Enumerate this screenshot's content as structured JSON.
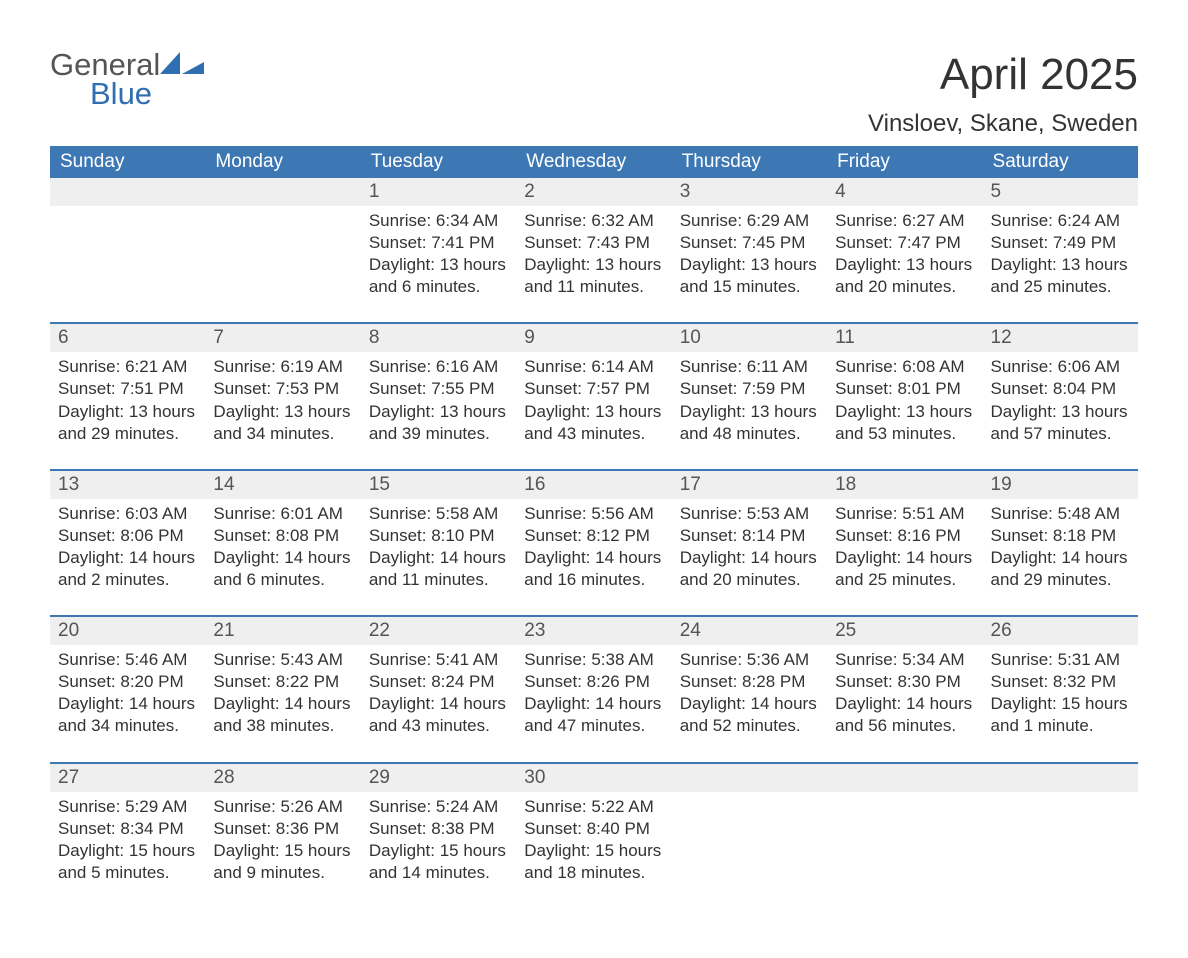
{
  "logo": {
    "word1": "General",
    "word2": "Blue"
  },
  "title": "April 2025",
  "subtitle": "Vinsloev, Skane, Sweden",
  "colors": {
    "header_bg": "#3d78b5",
    "header_text": "#ffffff",
    "daynum_bg": "#efefef",
    "daynum_border": "#3d78b5",
    "body_text": "#333333",
    "logo_gray": "#555555",
    "logo_blue": "#2f6eb0",
    "page_bg": "#ffffff"
  },
  "weekdays": [
    "Sunday",
    "Monday",
    "Tuesday",
    "Wednesday",
    "Thursday",
    "Friday",
    "Saturday"
  ],
  "weeks": [
    [
      {
        "n": "",
        "sunrise": "",
        "sunset": "",
        "daylight": ""
      },
      {
        "n": "",
        "sunrise": "",
        "sunset": "",
        "daylight": ""
      },
      {
        "n": "1",
        "sunrise": "Sunrise: 6:34 AM",
        "sunset": "Sunset: 7:41 PM",
        "daylight": "Daylight: 13 hours and 6 minutes."
      },
      {
        "n": "2",
        "sunrise": "Sunrise: 6:32 AM",
        "sunset": "Sunset: 7:43 PM",
        "daylight": "Daylight: 13 hours and 11 minutes."
      },
      {
        "n": "3",
        "sunrise": "Sunrise: 6:29 AM",
        "sunset": "Sunset: 7:45 PM",
        "daylight": "Daylight: 13 hours and 15 minutes."
      },
      {
        "n": "4",
        "sunrise": "Sunrise: 6:27 AM",
        "sunset": "Sunset: 7:47 PM",
        "daylight": "Daylight: 13 hours and 20 minutes."
      },
      {
        "n": "5",
        "sunrise": "Sunrise: 6:24 AM",
        "sunset": "Sunset: 7:49 PM",
        "daylight": "Daylight: 13 hours and 25 minutes."
      }
    ],
    [
      {
        "n": "6",
        "sunrise": "Sunrise: 6:21 AM",
        "sunset": "Sunset: 7:51 PM",
        "daylight": "Daylight: 13 hours and 29 minutes."
      },
      {
        "n": "7",
        "sunrise": "Sunrise: 6:19 AM",
        "sunset": "Sunset: 7:53 PM",
        "daylight": "Daylight: 13 hours and 34 minutes."
      },
      {
        "n": "8",
        "sunrise": "Sunrise: 6:16 AM",
        "sunset": "Sunset: 7:55 PM",
        "daylight": "Daylight: 13 hours and 39 minutes."
      },
      {
        "n": "9",
        "sunrise": "Sunrise: 6:14 AM",
        "sunset": "Sunset: 7:57 PM",
        "daylight": "Daylight: 13 hours and 43 minutes."
      },
      {
        "n": "10",
        "sunrise": "Sunrise: 6:11 AM",
        "sunset": "Sunset: 7:59 PM",
        "daylight": "Daylight: 13 hours and 48 minutes."
      },
      {
        "n": "11",
        "sunrise": "Sunrise: 6:08 AM",
        "sunset": "Sunset: 8:01 PM",
        "daylight": "Daylight: 13 hours and 53 minutes."
      },
      {
        "n": "12",
        "sunrise": "Sunrise: 6:06 AM",
        "sunset": "Sunset: 8:04 PM",
        "daylight": "Daylight: 13 hours and 57 minutes."
      }
    ],
    [
      {
        "n": "13",
        "sunrise": "Sunrise: 6:03 AM",
        "sunset": "Sunset: 8:06 PM",
        "daylight": "Daylight: 14 hours and 2 minutes."
      },
      {
        "n": "14",
        "sunrise": "Sunrise: 6:01 AM",
        "sunset": "Sunset: 8:08 PM",
        "daylight": "Daylight: 14 hours and 6 minutes."
      },
      {
        "n": "15",
        "sunrise": "Sunrise: 5:58 AM",
        "sunset": "Sunset: 8:10 PM",
        "daylight": "Daylight: 14 hours and 11 minutes."
      },
      {
        "n": "16",
        "sunrise": "Sunrise: 5:56 AM",
        "sunset": "Sunset: 8:12 PM",
        "daylight": "Daylight: 14 hours and 16 minutes."
      },
      {
        "n": "17",
        "sunrise": "Sunrise: 5:53 AM",
        "sunset": "Sunset: 8:14 PM",
        "daylight": "Daylight: 14 hours and 20 minutes."
      },
      {
        "n": "18",
        "sunrise": "Sunrise: 5:51 AM",
        "sunset": "Sunset: 8:16 PM",
        "daylight": "Daylight: 14 hours and 25 minutes."
      },
      {
        "n": "19",
        "sunrise": "Sunrise: 5:48 AM",
        "sunset": "Sunset: 8:18 PM",
        "daylight": "Daylight: 14 hours and 29 minutes."
      }
    ],
    [
      {
        "n": "20",
        "sunrise": "Sunrise: 5:46 AM",
        "sunset": "Sunset: 8:20 PM",
        "daylight": "Daylight: 14 hours and 34 minutes."
      },
      {
        "n": "21",
        "sunrise": "Sunrise: 5:43 AM",
        "sunset": "Sunset: 8:22 PM",
        "daylight": "Daylight: 14 hours and 38 minutes."
      },
      {
        "n": "22",
        "sunrise": "Sunrise: 5:41 AM",
        "sunset": "Sunset: 8:24 PM",
        "daylight": "Daylight: 14 hours and 43 minutes."
      },
      {
        "n": "23",
        "sunrise": "Sunrise: 5:38 AM",
        "sunset": "Sunset: 8:26 PM",
        "daylight": "Daylight: 14 hours and 47 minutes."
      },
      {
        "n": "24",
        "sunrise": "Sunrise: 5:36 AM",
        "sunset": "Sunset: 8:28 PM",
        "daylight": "Daylight: 14 hours and 52 minutes."
      },
      {
        "n": "25",
        "sunrise": "Sunrise: 5:34 AM",
        "sunset": "Sunset: 8:30 PM",
        "daylight": "Daylight: 14 hours and 56 minutes."
      },
      {
        "n": "26",
        "sunrise": "Sunrise: 5:31 AM",
        "sunset": "Sunset: 8:32 PM",
        "daylight": "Daylight: 15 hours and 1 minute."
      }
    ],
    [
      {
        "n": "27",
        "sunrise": "Sunrise: 5:29 AM",
        "sunset": "Sunset: 8:34 PM",
        "daylight": "Daylight: 15 hours and 5 minutes."
      },
      {
        "n": "28",
        "sunrise": "Sunrise: 5:26 AM",
        "sunset": "Sunset: 8:36 PM",
        "daylight": "Daylight: 15 hours and 9 minutes."
      },
      {
        "n": "29",
        "sunrise": "Sunrise: 5:24 AM",
        "sunset": "Sunset: 8:38 PM",
        "daylight": "Daylight: 15 hours and 14 minutes."
      },
      {
        "n": "30",
        "sunrise": "Sunrise: 5:22 AM",
        "sunset": "Sunset: 8:40 PM",
        "daylight": "Daylight: 15 hours and 18 minutes."
      },
      {
        "n": "",
        "sunrise": "",
        "sunset": "",
        "daylight": ""
      },
      {
        "n": "",
        "sunrise": "",
        "sunset": "",
        "daylight": ""
      },
      {
        "n": "",
        "sunrise": "",
        "sunset": "",
        "daylight": ""
      }
    ]
  ]
}
